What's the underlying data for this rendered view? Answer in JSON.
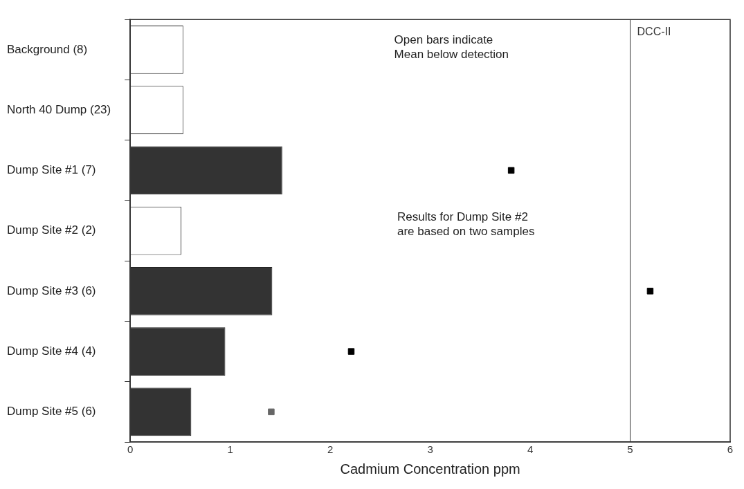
{
  "chart_data": {
    "type": "bar",
    "orientation": "horizontal",
    "xlabel": "Cadmium Concentration ppm",
    "categories": [
      "Background (8)",
      "North 40 Dump (23)",
      "Dump Site #1 (7)",
      "Dump Site #2 (2)",
      "Dump Site #3 (6)",
      "Dump Site #4 (4)",
      "Dump Site #5 (6)"
    ],
    "series": [
      {
        "values": [
          0.53,
          0.53,
          1.52,
          0.51,
          1.42,
          0.95,
          0.61
        ],
        "colors": [
          "#ffffff",
          "#ffffff",
          "#333333",
          "#ffffff",
          "#333333",
          "#333333",
          "#333333"
        ]
      },
      {
        "type": "scatter",
        "x": [
          "Dump Site #1 (7)",
          "Dump Site #3 (6)",
          "Dump Site #4 (4)",
          "Dump Site #5 (6)"
        ],
        "values": [
          3.81,
          5.2,
          2.21,
          1.41
        ],
        "colors": [
          "#000000",
          "#000000",
          "#000000",
          "#666666"
        ]
      }
    ],
    "xlim": [
      0,
      6
    ],
    "xticks": [
      0,
      1,
      2,
      3,
      4,
      5,
      6
    ],
    "marker": "square",
    "grid": false,
    "legend": false,
    "ref_lines": [
      {
        "axis": "x",
        "value": 5,
        "label": "DCC-II",
        "color": "#333333"
      }
    ],
    "annotations": [
      "Open bars indicate\nMean below detection",
      "Results for Dump Site #2\nare based on two samples"
    ]
  }
}
